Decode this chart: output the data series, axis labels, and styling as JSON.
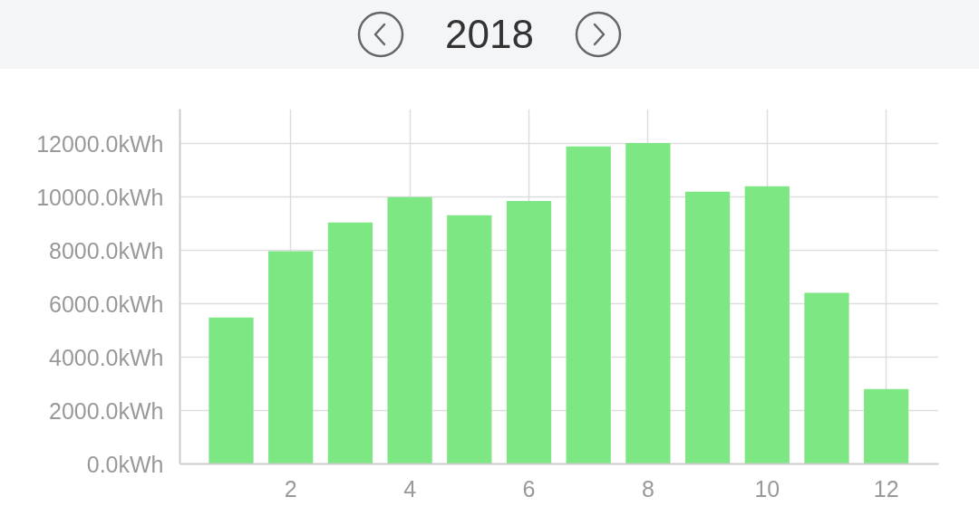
{
  "chart_data": {
    "type": "bar",
    "title": "2018",
    "x": [
      1,
      2,
      3,
      4,
      5,
      6,
      7,
      8,
      9,
      10,
      11,
      12
    ],
    "values": [
      5490,
      7970,
      9050,
      10000,
      9320,
      9860,
      11900,
      12030,
      10200,
      10410,
      6410,
      2810
    ],
    "color": "#7de883",
    "xlim": [
      0.14,
      12.88
    ],
    "xticks": [
      2,
      4,
      6,
      8,
      10,
      12
    ],
    "ylim": [
      0,
      13300
    ],
    "yticks": [
      {
        "value": 0,
        "label": "0.0kWh"
      },
      {
        "value": 2000,
        "label": "2000.0kWh"
      },
      {
        "value": 4000,
        "label": "4000.0kWh"
      },
      {
        "value": 6000,
        "label": "6000.0kWh"
      },
      {
        "value": 8000,
        "label": "8000.0kWh"
      },
      {
        "value": 10000,
        "label": "10000.0kWh"
      },
      {
        "value": 12000,
        "label": "12000.0kWh"
      }
    ],
    "grid": true
  }
}
